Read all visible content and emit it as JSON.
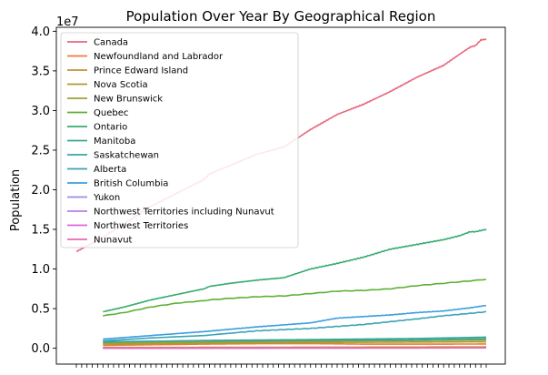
{
  "chart_data": {
    "type": "line",
    "title": "Population Over Year By Geographical Region",
    "xlabel": "",
    "ylabel": "Population",
    "offset_label": "1e7",
    "x_range": [
      1946,
      2023
    ],
    "ylim": [
      -0.2,
      4.05
    ],
    "y_ticks": [
      0.0,
      0.5,
      1.0,
      1.5,
      2.0,
      2.5,
      3.0,
      3.5,
      4.0
    ],
    "y_tick_labels": [
      "0.0",
      "0.5",
      "1.0",
      "1.5",
      "2.0",
      "2.5",
      "3.0",
      "3.5",
      "4.0"
    ],
    "x_tick_count": 78,
    "legend_position": "upper-left",
    "grid": false,
    "series": [
      {
        "name": "Canada",
        "color": "#e8677d",
        "start_x": 1946,
        "points": [
          [
            1946,
            1.22
          ],
          [
            1950,
            1.36
          ],
          [
            1955,
            1.57
          ],
          [
            1960,
            1.79
          ],
          [
            1965,
            1.96
          ],
          [
            1970,
            2.13
          ],
          [
            1971,
            2.2
          ],
          [
            1975,
            2.31
          ],
          [
            1980,
            2.45
          ],
          [
            1985,
            2.54
          ],
          [
            1990,
            2.76
          ],
          [
            1995,
            2.95
          ],
          [
            2000,
            3.08
          ],
          [
            2005,
            3.24
          ],
          [
            2010,
            3.42
          ],
          [
            2015,
            3.57
          ],
          [
            2018,
            3.71
          ],
          [
            2020,
            3.8
          ],
          [
            2021,
            3.82
          ],
          [
            2022,
            3.89
          ],
          [
            2023,
            3.9
          ]
        ]
      },
      {
        "name": "Newfoundland and Labrador",
        "color": "#f07a36",
        "start_x": 1951,
        "points": [
          [
            1951,
            0.036
          ],
          [
            1970,
            0.052
          ],
          [
            1980,
            0.057
          ],
          [
            1990,
            0.058
          ],
          [
            2000,
            0.052
          ],
          [
            2010,
            0.052
          ],
          [
            2023,
            0.053
          ]
        ]
      },
      {
        "name": "Prince Edward Island",
        "color": "#c69032",
        "start_x": 1951,
        "points": [
          [
            1951,
            0.0098
          ],
          [
            1980,
            0.012
          ],
          [
            2000,
            0.014
          ],
          [
            2023,
            0.017
          ]
        ]
      },
      {
        "name": "Nova Scotia",
        "color": "#ab9a2f",
        "start_x": 1951,
        "points": [
          [
            1951,
            0.064
          ],
          [
            1980,
            0.085
          ],
          [
            2000,
            0.093
          ],
          [
            2023,
            0.103
          ]
        ]
      },
      {
        "name": "New Brunswick",
        "color": "#99a431",
        "start_x": 1951,
        "points": [
          [
            1951,
            0.052
          ],
          [
            1980,
            0.07
          ],
          [
            2000,
            0.075
          ],
          [
            2023,
            0.081
          ]
        ]
      },
      {
        "name": "Quebec",
        "color": "#5cb033",
        "start_x": 1951,
        "points": [
          [
            1951,
            0.41
          ],
          [
            1955,
            0.45
          ],
          [
            1960,
            0.52
          ],
          [
            1965,
            0.57
          ],
          [
            1970,
            0.6
          ],
          [
            1971,
            0.61
          ],
          [
            1975,
            0.63
          ],
          [
            1980,
            0.65
          ],
          [
            1985,
            0.66
          ],
          [
            1990,
            0.69
          ],
          [
            1995,
            0.72
          ],
          [
            2000,
            0.73
          ],
          [
            2005,
            0.75
          ],
          [
            2010,
            0.79
          ],
          [
            2015,
            0.82
          ],
          [
            2020,
            0.85
          ],
          [
            2023,
            0.87
          ]
        ]
      },
      {
        "name": "Ontario",
        "color": "#35ab6e",
        "start_x": 1951,
        "points": [
          [
            1951,
            0.46
          ],
          [
            1955,
            0.52
          ],
          [
            1960,
            0.61
          ],
          [
            1965,
            0.68
          ],
          [
            1970,
            0.75
          ],
          [
            1971,
            0.78
          ],
          [
            1975,
            0.82
          ],
          [
            1980,
            0.86
          ],
          [
            1985,
            0.89
          ],
          [
            1990,
            1.0
          ],
          [
            1995,
            1.07
          ],
          [
            2000,
            1.15
          ],
          [
            2005,
            1.25
          ],
          [
            2010,
            1.31
          ],
          [
            2015,
            1.37
          ],
          [
            2018,
            1.42
          ],
          [
            2020,
            1.47
          ],
          [
            2021,
            1.47
          ],
          [
            2023,
            1.5
          ]
        ]
      },
      {
        "name": "Manitoba",
        "color": "#36a891",
        "start_x": 1951,
        "points": [
          [
            1951,
            0.078
          ],
          [
            1970,
            0.098
          ],
          [
            1990,
            0.109
          ],
          [
            2010,
            0.123
          ],
          [
            2023,
            0.14
          ]
        ]
      },
      {
        "name": "Saskatchewan",
        "color": "#38a6a2",
        "start_x": 1951,
        "points": [
          [
            1951,
            0.083
          ],
          [
            1970,
            0.093
          ],
          [
            1990,
            0.1
          ],
          [
            2010,
            0.105
          ],
          [
            2023,
            0.12
          ]
        ]
      },
      {
        "name": "Alberta",
        "color": "#3aa3b6",
        "start_x": 1951,
        "points": [
          [
            1951,
            0.093
          ],
          [
            1960,
            0.13
          ],
          [
            1970,
            0.16
          ],
          [
            1980,
            0.22
          ],
          [
            1990,
            0.25
          ],
          [
            2000,
            0.3
          ],
          [
            2010,
            0.37
          ],
          [
            2015,
            0.41
          ],
          [
            2020,
            0.44
          ],
          [
            2023,
            0.46
          ]
        ]
      },
      {
        "name": "British Columbia",
        "color": "#3c9ede",
        "start_x": 1951,
        "points": [
          [
            1951,
            0.115
          ],
          [
            1960,
            0.16
          ],
          [
            1970,
            0.21
          ],
          [
            1980,
            0.27
          ],
          [
            1990,
            0.32
          ],
          [
            1995,
            0.38
          ],
          [
            2000,
            0.4
          ],
          [
            2005,
            0.42
          ],
          [
            2010,
            0.45
          ],
          [
            2015,
            0.47
          ],
          [
            2020,
            0.51
          ],
          [
            2023,
            0.54
          ]
        ]
      },
      {
        "name": "Yukon",
        "color": "#9a8ee2",
        "start_x": 1951,
        "points": [
          [
            1951,
            0.0009
          ],
          [
            2023,
            0.0043
          ]
        ]
      },
      {
        "name": "Northwest Territories including Nunavut",
        "color": "#bd7ee2",
        "start_x": 1951,
        "points": [
          [
            1951,
            0.0016
          ],
          [
            1998,
            0.0065
          ]
        ]
      },
      {
        "name": "Northwest Territories",
        "color": "#de62df",
        "start_x": 1951,
        "points": [
          [
            1951,
            0.002
          ],
          [
            2023,
            0.0045
          ]
        ]
      },
      {
        "name": "Nunavut",
        "color": "#ea67b2",
        "start_x": 1951,
        "points": [
          [
            1951,
            0.001
          ],
          [
            2023,
            0.004
          ]
        ]
      }
    ]
  }
}
